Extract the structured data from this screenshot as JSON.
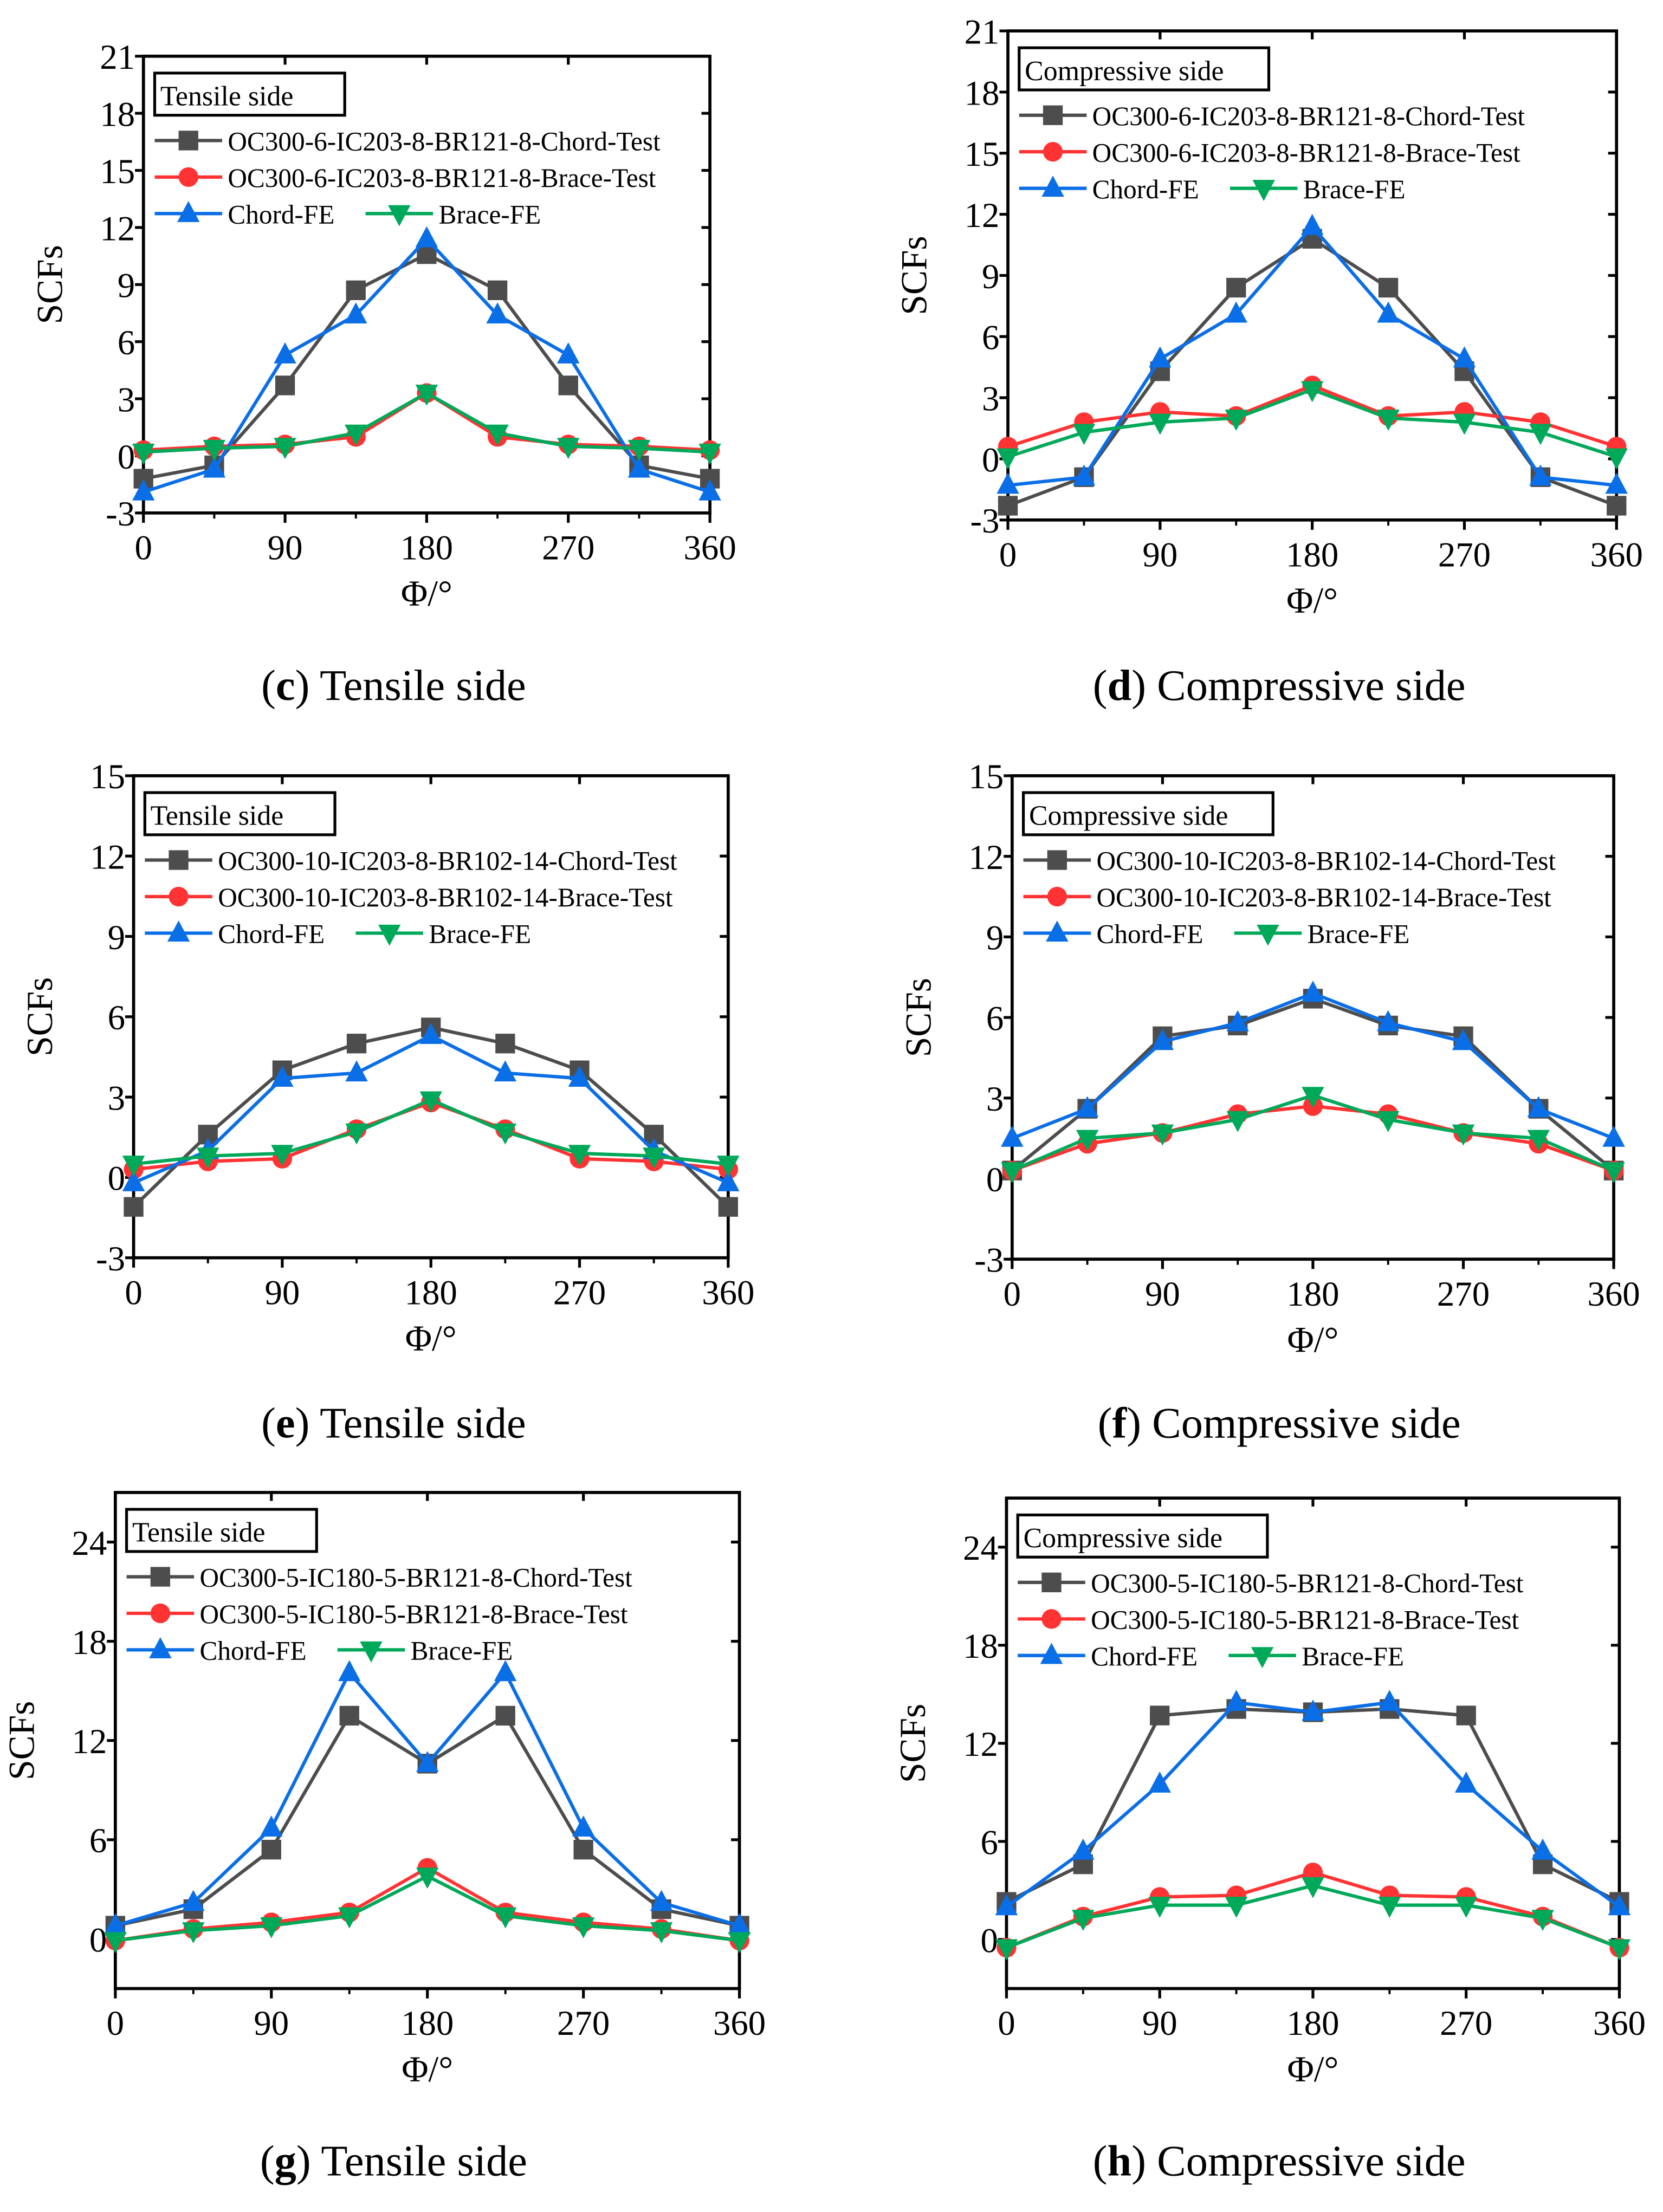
{
  "chart_data": [
    {
      "type": "line",
      "caption_letter": "c",
      "caption_text": " Tensile side",
      "legend_title": "Tensile side",
      "xlabel": "Φ/°",
      "ylabel": "SCFs",
      "x": [
        0,
        45,
        90,
        135,
        180,
        225,
        270,
        315,
        360
      ],
      "xlim": [
        0,
        360
      ],
      "xticks": [
        0,
        90,
        180,
        270,
        360
      ],
      "ylim": [
        -3,
        21
      ],
      "yticks": [
        -3,
        0,
        3,
        6,
        9,
        12,
        15,
        18,
        21
      ],
      "series": [
        {
          "name": "OC300-6-IC203-8-BR121-8-Chord-Test",
          "color": "#4d4d4d",
          "marker": "square",
          "values": [
            -1.2,
            -0.5,
            3.7,
            8.7,
            10.6,
            8.7,
            3.7,
            -0.5,
            -1.2
          ]
        },
        {
          "name": "OC300-6-IC203-8-BR121-8-Brace-Test",
          "color": "#ff3333",
          "marker": "circle",
          "values": [
            0.3,
            0.5,
            0.6,
            1.0,
            3.3,
            1.0,
            0.6,
            0.5,
            0.3
          ]
        },
        {
          "name": "Chord-FE",
          "color": "#0a6ee6",
          "marker": "triangle-up",
          "values": [
            -1.9,
            -0.7,
            5.3,
            7.4,
            11.4,
            7.4,
            5.3,
            -0.7,
            -1.9
          ]
        },
        {
          "name": "Brace-FE",
          "color": "#00a859",
          "marker": "triangle-down",
          "values": [
            0.2,
            0.4,
            0.5,
            1.2,
            3.3,
            1.2,
            0.5,
            0.4,
            0.2
          ]
        }
      ]
    },
    {
      "type": "line",
      "caption_letter": "d",
      "caption_text": " Compressive side",
      "legend_title": "Compressive side",
      "xlabel": "Φ/°",
      "ylabel": "SCFs",
      "x": [
        0,
        45,
        90,
        135,
        180,
        225,
        270,
        315,
        360
      ],
      "xlim": [
        0,
        360
      ],
      "xticks": [
        0,
        90,
        180,
        270,
        360
      ],
      "ylim": [
        -3,
        21
      ],
      "yticks": [
        -3,
        0,
        3,
        6,
        9,
        12,
        15,
        18,
        21
      ],
      "series": [
        {
          "name": "OC300-6-IC203-8-BR121-8-Chord-Test",
          "color": "#4d4d4d",
          "marker": "square",
          "values": [
            -2.3,
            -0.9,
            4.3,
            8.4,
            10.8,
            8.4,
            4.3,
            -0.9,
            -2.3
          ]
        },
        {
          "name": "OC300-6-IC203-8-BR121-8-Brace-Test",
          "color": "#ff3333",
          "marker": "circle",
          "values": [
            0.6,
            1.8,
            2.3,
            2.1,
            3.6,
            2.1,
            2.3,
            1.8,
            0.6
          ]
        },
        {
          "name": "Chord-FE",
          "color": "#0a6ee6",
          "marker": "triangle-up",
          "values": [
            -1.3,
            -0.9,
            4.9,
            7.1,
            11.4,
            7.1,
            4.9,
            -0.9,
            -1.3
          ]
        },
        {
          "name": "Brace-FE",
          "color": "#00a859",
          "marker": "triangle-down",
          "values": [
            0.1,
            1.3,
            1.8,
            2.0,
            3.4,
            2.0,
            1.8,
            1.3,
            0.1
          ]
        }
      ]
    },
    {
      "type": "line",
      "caption_letter": "e",
      "caption_text": " Tensile side",
      "legend_title": "Tensile side",
      "xlabel": "Φ/°",
      "ylabel": "SCFs",
      "x": [
        0,
        45,
        90,
        135,
        180,
        225,
        270,
        315,
        360
      ],
      "xlim": [
        0,
        360
      ],
      "xticks": [
        0,
        90,
        180,
        270,
        360
      ],
      "ylim": [
        -3,
        15
      ],
      "yticks": [
        -3,
        0,
        3,
        6,
        9,
        12,
        15
      ],
      "series": [
        {
          "name": "OC300-10-IC203-8-BR102-14-Chord-Test",
          "color": "#4d4d4d",
          "marker": "square",
          "values": [
            -1.1,
            1.6,
            4.0,
            5.0,
            5.6,
            5.0,
            4.0,
            1.6,
            -1.1
          ]
        },
        {
          "name": "OC300-10-IC203-8-BR102-14-Brace-Test",
          "color": "#ff3333",
          "marker": "circle",
          "values": [
            0.3,
            0.6,
            0.7,
            1.8,
            2.8,
            1.8,
            0.7,
            0.6,
            0.3
          ]
        },
        {
          "name": "Chord-FE",
          "color": "#0a6ee6",
          "marker": "triangle-up",
          "values": [
            -0.2,
            1.0,
            3.7,
            3.9,
            5.3,
            3.9,
            3.7,
            1.0,
            -0.2
          ]
        },
        {
          "name": "Brace-FE",
          "color": "#00a859",
          "marker": "triangle-down",
          "values": [
            0.5,
            0.8,
            0.9,
            1.7,
            2.9,
            1.7,
            0.9,
            0.8,
            0.5
          ]
        }
      ]
    },
    {
      "type": "line",
      "caption_letter": "f",
      "caption_text": " Compressive side",
      "legend_title": "Compressive side",
      "xlabel": "Φ/°",
      "ylabel": "SCFs",
      "x": [
        0,
        45,
        90,
        135,
        180,
        225,
        270,
        315,
        360
      ],
      "xlim": [
        0,
        360
      ],
      "xticks": [
        0,
        90,
        180,
        270,
        360
      ],
      "ylim": [
        -3,
        15
      ],
      "yticks": [
        -3,
        0,
        3,
        6,
        9,
        12,
        15
      ],
      "series": [
        {
          "name": "OC300-10-IC203-8-BR102-14-Chord-Test",
          "color": "#4d4d4d",
          "marker": "square",
          "values": [
            0.3,
            2.6,
            5.3,
            5.7,
            6.7,
            5.7,
            5.3,
            2.6,
            0.3
          ]
        },
        {
          "name": "OC300-10-IC203-8-BR102-14-Brace-Test",
          "color": "#ff3333",
          "marker": "circle",
          "values": [
            0.3,
            1.3,
            1.7,
            2.4,
            2.7,
            2.4,
            1.7,
            1.3,
            0.3
          ]
        },
        {
          "name": "Chord-FE",
          "color": "#0a6ee6",
          "marker": "triangle-up",
          "values": [
            1.5,
            2.6,
            5.1,
            5.8,
            6.9,
            5.8,
            5.1,
            2.6,
            1.5
          ]
        },
        {
          "name": "Brace-FE",
          "color": "#00a859",
          "marker": "triangle-down",
          "values": [
            0.3,
            1.5,
            1.7,
            2.2,
            3.1,
            2.2,
            1.7,
            1.5,
            0.3
          ]
        }
      ]
    },
    {
      "type": "line",
      "caption_letter": "g",
      "caption_text": " Tensile side",
      "legend_title": "Tensile side",
      "xlabel": "Φ/°",
      "ylabel": "SCFs",
      "x": [
        0,
        45,
        90,
        135,
        180,
        225,
        270,
        315,
        360
      ],
      "xlim": [
        0,
        360
      ],
      "xticks": [
        0,
        90,
        180,
        270,
        360
      ],
      "ylim": [
        -3,
        27
      ],
      "yticks": [
        0,
        6,
        12,
        18,
        24
      ],
      "series": [
        {
          "name": "OC300-5-IC180-5-BR121-8-Chord-Test",
          "color": "#4d4d4d",
          "marker": "square",
          "values": [
            0.8,
            1.8,
            5.4,
            13.5,
            10.6,
            13.5,
            5.4,
            1.8,
            0.8
          ]
        },
        {
          "name": "OC300-5-IC180-5-BR121-8-Brace-Test",
          "color": "#ff3333",
          "marker": "circle",
          "values": [
            -0.1,
            0.6,
            1.0,
            1.6,
            4.3,
            1.6,
            1.0,
            0.6,
            -0.1
          ]
        },
        {
          "name": "Chord-FE",
          "color": "#0a6ee6",
          "marker": "triangle-up",
          "values": [
            0.8,
            2.2,
            6.7,
            16.1,
            10.6,
            16.1,
            6.7,
            2.2,
            0.8
          ]
        },
        {
          "name": "Brace-FE",
          "color": "#00a859",
          "marker": "triangle-down",
          "values": [
            -0.1,
            0.5,
            0.8,
            1.4,
            3.8,
            1.4,
            0.8,
            0.5,
            -0.1
          ]
        }
      ]
    },
    {
      "type": "line",
      "caption_letter": "h",
      "caption_text": " Compressive side",
      "legend_title": "Compressive side",
      "xlabel": "Φ/°",
      "ylabel": "SCFs",
      "x": [
        0,
        45,
        90,
        135,
        180,
        225,
        270,
        315,
        360
      ],
      "xlim": [
        0,
        360
      ],
      "xticks": [
        0,
        90,
        180,
        270,
        360
      ],
      "ylim": [
        -3,
        27
      ],
      "yticks": [
        0,
        6,
        12,
        18,
        24
      ],
      "series": [
        {
          "name": "OC300-5-IC180-5-BR121-8-Chord-Test",
          "color": "#4d4d4d",
          "marker": "square",
          "values": [
            2.3,
            4.6,
            13.7,
            14.1,
            13.9,
            14.1,
            13.7,
            4.6,
            2.3
          ]
        },
        {
          "name": "OC300-5-IC180-5-BR121-8-Brace-Test",
          "color": "#ff3333",
          "marker": "circle",
          "values": [
            -0.5,
            1.4,
            2.6,
            2.7,
            4.1,
            2.7,
            2.6,
            1.4,
            -0.5
          ]
        },
        {
          "name": "Chord-FE",
          "color": "#0a6ee6",
          "marker": "triangle-up",
          "values": [
            2.0,
            5.4,
            9.5,
            14.5,
            13.9,
            14.5,
            9.5,
            5.4,
            2.0
          ]
        },
        {
          "name": "Brace-FE",
          "color": "#00a859",
          "marker": "triangle-down",
          "values": [
            -0.5,
            1.3,
            2.1,
            2.1,
            3.3,
            2.1,
            2.1,
            1.3,
            -0.5
          ]
        }
      ]
    }
  ]
}
